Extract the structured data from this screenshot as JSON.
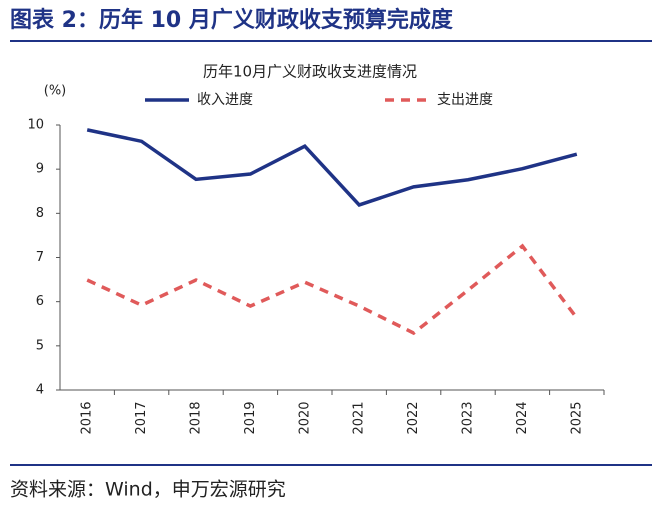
{
  "figure_title": "图表 2：历年 10 月广义财政收支预算完成度",
  "source": "资料来源：Wind，申万宏源研究",
  "chart_data": {
    "type": "line",
    "title": "历年10月广义财政收支进度情况",
    "y_label": "(%)",
    "categories": [
      "2016",
      "2017",
      "2018",
      "2019",
      "2020",
      "2021",
      "2022",
      "2023",
      "2024",
      "2025"
    ],
    "series": [
      {
        "name": "收入进度",
        "color": "#1f3386",
        "dashed": false,
        "values": [
          9.89,
          9.63,
          8.77,
          8.89,
          9.52,
          8.19,
          8.6,
          8.76,
          9.01,
          9.34
        ]
      },
      {
        "name": "支出进度",
        "color": "#e05a5a",
        "dashed": true,
        "values": [
          6.49,
          5.92,
          6.49,
          5.9,
          6.44,
          5.9,
          5.29,
          6.26,
          7.26,
          5.63
        ]
      }
    ],
    "ylim": [
      4,
      10
    ],
    "yticks": [
      4,
      5,
      6,
      7,
      8,
      9,
      10
    ],
    "grid": false,
    "legend": "top"
  }
}
